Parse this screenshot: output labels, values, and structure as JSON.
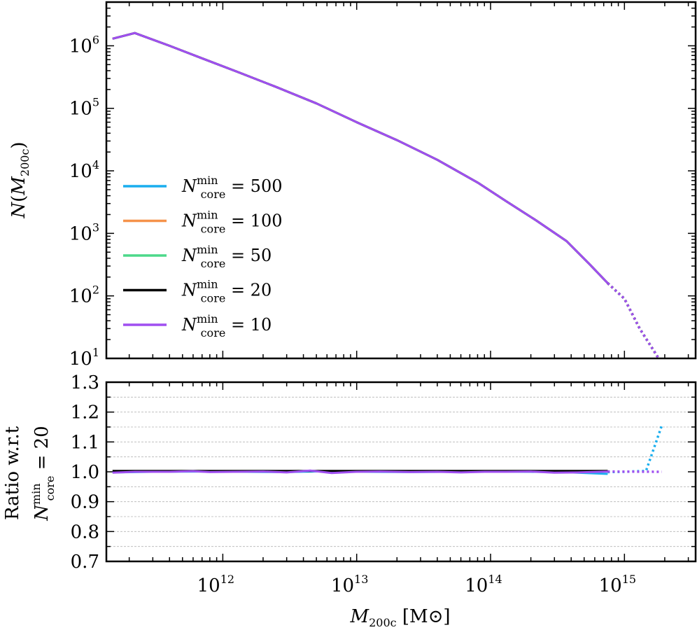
{
  "chart_data": [
    {
      "panel": "top",
      "type": "line",
      "xscale": "log",
      "yscale": "log",
      "xlim": [
        135000000000.0,
        3400000000000000.0
      ],
      "ylim": [
        10,
        5000000
      ],
      "ylabel": "N(M200c)",
      "yticks": [
        10,
        100,
        1000,
        10000,
        100000,
        1000000
      ],
      "ytick_labels": [
        [
          "10",
          "1"
        ],
        [
          "10",
          "2"
        ],
        [
          "10",
          "3"
        ],
        [
          "10",
          "4"
        ],
        [
          "10",
          "5"
        ],
        [
          "10",
          "6"
        ]
      ],
      "series": [
        {
          "name": "N_core^min = 500",
          "color": "#1aaeee"
        },
        {
          "name": "N_core^min = 100",
          "color": "#f5924a"
        },
        {
          "name": "N_core^min = 50",
          "color": "#4cd98a"
        },
        {
          "name": "N_core^min = 20",
          "color": "#000000"
        },
        {
          "name": "N_core^min = 10",
          "color": "#a04ff0"
        }
      ],
      "solid": {
        "x": [
          150000000000.0,
          220000000000.0,
          400000000000.0,
          700000000000.0,
          1300000000000.0,
          2500000000000.0,
          5000000000000.0,
          10000000000000.0,
          20000000000000.0,
          40000000000000.0,
          80000000000000.0,
          130000000000000.0,
          220000000000000.0,
          370000000000000.0,
          550000000000000.0,
          750000000000000.0
        ],
        "y": [
          1300000,
          1600000,
          1000000,
          630000,
          380000,
          220000,
          120000,
          60000,
          31000,
          15000,
          6500,
          3300,
          1600,
          750,
          320,
          160
        ]
      },
      "dotted": {
        "x": [
          750000000000000.0,
          1000000000000000.0,
          1300000000000000.0,
          1800000000000000.0
        ],
        "y": [
          160,
          90,
          30,
          10
        ]
      }
    },
    {
      "panel": "bottom",
      "type": "line",
      "xscale": "log",
      "yscale": "linear",
      "xlim": [
        135000000000.0,
        3400000000000000.0
      ],
      "ylim": [
        0.7,
        1.3
      ],
      "xlabel_parts": {
        "main": "M",
        "sub": "200c",
        "unit": "[M⊙]"
      },
      "ylabel_line1": "Ratio w.r.t",
      "ylabel_line2": {
        "main": "N",
        "sup": "min",
        "sub": "core",
        "rest": " = 20"
      },
      "yticks": [
        0.7,
        0.8,
        0.9,
        1.0,
        1.1,
        1.2,
        1.3
      ],
      "ytick_labels": [
        "0.7",
        "0.8",
        "0.9",
        "1.0",
        "1.1",
        "1.2",
        "1.3"
      ],
      "xticks": [
        1000000000000.0,
        10000000000000.0,
        100000000000000.0,
        1000000000000000.0
      ],
      "xtick_labels": [
        [
          "10",
          "12"
        ],
        [
          "10",
          "13"
        ],
        [
          "10",
          "14"
        ],
        [
          "10",
          "15"
        ]
      ],
      "grid_y": [
        0.75,
        0.8,
        0.85,
        0.9,
        0.95,
        1.05,
        1.1,
        1.15,
        1.2,
        1.25
      ],
      "series": [
        {
          "name": "N_core^min = 500",
          "color": "#1aaeee",
          "x": [
            150000000000.0,
            300000000000.0,
            700000000000.0,
            1500000000000.0,
            3000000000000.0,
            6000000000000.0,
            12000000000000.0,
            25000000000000.0,
            50000000000000.0,
            100000000000000.0,
            200000000000000.0,
            400000000000000.0,
            750000000000000.0
          ],
          "y": [
            0.998,
            1.0,
            1.001,
            1.0,
            0.999,
            1.002,
            1.0,
            0.999,
            1.0,
            1.001,
            1.0,
            0.998,
            0.993
          ],
          "dotted_x": [
            750000000000000.0,
            1000000000000000.0,
            1450000000000000.0,
            1900000000000000.0
          ],
          "dotted_y": [
            0.999,
            1.0,
            1.003,
            1.155
          ]
        },
        {
          "name": "N_core^min = 20",
          "color": "#000000",
          "x": [
            150000000000.0,
            750000000000000.0
          ],
          "y": [
            1.003,
            1.003
          ],
          "dotted_x": [],
          "dotted_y": []
        },
        {
          "name": "N_core^min = 10",
          "color": "#a04ff0",
          "x": [
            150000000000.0,
            220000000000.0,
            400000000000.0,
            600000000000.0,
            800000000000.0,
            1200000000000.0,
            2000000000000.0,
            3000000000000.0,
            4500000000000.0,
            6500000000000.0,
            10000000000000.0,
            15000000000000.0,
            25000000000000.0,
            40000000000000.0,
            60000000000000.0,
            90000000000000.0,
            130000000000000.0,
            200000000000000.0,
            300000000000000.0,
            450000000000000.0,
            750000000000000.0
          ],
          "y": [
            0.997,
            1.0,
            1.0,
            1.002,
            0.999,
            1.0,
            1.001,
            0.998,
            1.004,
            0.996,
            1.0,
            1.001,
            0.999,
            1.0,
            0.998,
            1.0,
            1.0,
            1.001,
            0.997,
            0.998,
            1.001
          ],
          "dotted_x": [
            750000000000000.0,
            1900000000000000.0
          ],
          "dotted_y": [
            1.001,
            1.0
          ]
        }
      ]
    }
  ]
}
